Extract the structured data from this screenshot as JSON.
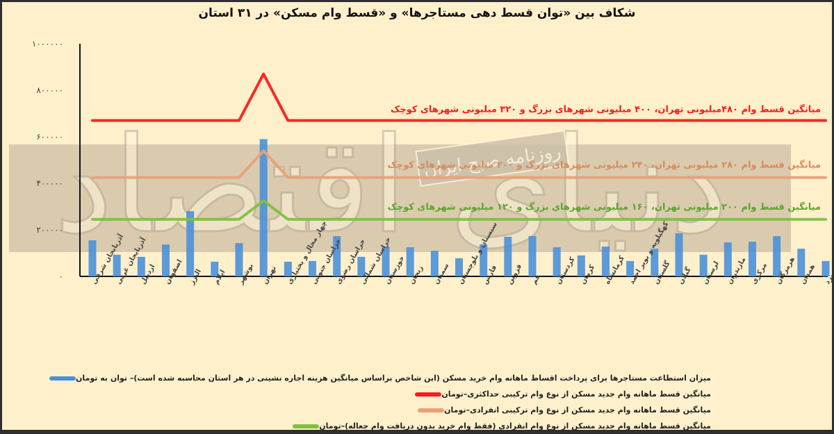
{
  "title": "شکاف بین «توان قسط دهی مستاجرها» و «قسط وام مسکن» در ۳۱ استان",
  "watermarks": {
    "large": "دنیای اقتصاد",
    "stamp": "روزنامه صبح ایران"
  },
  "colors": {
    "background": "#fff0cc",
    "bar": "#4a90d9",
    "red": "#ff1a1a",
    "orange": "#e8a07a",
    "green": "#7cc142",
    "band": "#cdbfa4"
  },
  "annotations": {
    "red": "میانگین قسط وام ۴۸۰میلیونی تهران، ۴۰۰ میلیونی شهرهای بزرگ و ۳۲۰ میلیونی شهرهای کوچک",
    "orange": "میانگین قسط وام ۲۸۰ میلیونی تهران، ۲۴۰ میلیونی شهرهای بزرگ و ۲۰۰ میلیونی شهرهای کوچک",
    "green": "میانگین قسط وام ۲۰۰ میلیونی تهران، ۱۶۰ میلیونی شهرهای بزرگ و ۱۲۰ میلیونی شهرهای کوچک"
  },
  "y_ticks": [
    "۱۰۰۰۰۰۰",
    "۸۰۰۰۰۰",
    "۶۰۰۰۰۰",
    "۴۰۰۰۰۰",
    "۲۰۰۰۰۰",
    "۰"
  ],
  "legend": [
    {
      "key": "bar",
      "label": "میزان استطاعت مستاجرها برای پرداخت اقساط ماهانه وام خرید مسکن (این شاخص براساس میانگین هزینه اجاره نشینی در هر استان محاسبه شده است)– توان به تومان"
    },
    {
      "key": "red",
      "label": "میانگین قسط ماهانه وام جدید مسکن از نوع وام ترکیبی حداکثری–تومان"
    },
    {
      "key": "orange",
      "label": "میانگین قسط ماهانه وام جدید مسکن از نوع وام ترکیبی انفرادی–تومان"
    },
    {
      "key": "green",
      "label": "میانگین قسط ماهانه وام جدید مسکن از نوع وام انفرادی (فقط وام خرید بدون دریافت وام جعاله)–تومان"
    }
  ],
  "chart_data": {
    "type": "bar",
    "title": "شکاف بین «توان قسط دهی مستاجرها» و «قسط وام مسکن» در ۳۱ استان",
    "xlabel": "",
    "ylabel": "تومان",
    "ylim": [
      0,
      1000000
    ],
    "grid": false,
    "legend_position": "bottom",
    "categories": [
      "آذربایجان شرقی",
      "آذربایجان غربی",
      "اردبیل",
      "اصفهان",
      "البرز",
      "ایلام",
      "بوشهر",
      "تهران",
      "چهار محال و بختیاری",
      "خراسان جنوبی",
      "خراسان رضوی",
      "خراسان شمالی",
      "خوزستان",
      "زنجان",
      "سمنان",
      "سیستان و بلوچستان",
      "فارس",
      "قزوین",
      "قم",
      "کردستان",
      "کرمان",
      "کرمانشاه",
      "کهگیلویه و بویر احمد",
      "گلستان",
      "گیلان",
      "لرستان",
      "مازندران",
      "مرکزی",
      "هرمزگان",
      "همدان",
      "یزد"
    ],
    "series": [
      {
        "name": "توان قسط دهی مستاجرها",
        "type": "bar",
        "values": [
          155000,
          93000,
          84000,
          137000,
          280000,
          63000,
          143000,
          590000,
          63000,
          66000,
          173000,
          84000,
          128000,
          125000,
          110000,
          78000,
          137000,
          170000,
          173000,
          125000,
          90000,
          128000,
          66000,
          119000,
          185000,
          93000,
          146000,
          149000,
          173000,
          119000,
          66000
        ]
      },
      {
        "name": "قسط وام ترکیبی حداکثری",
        "type": "line",
        "values": [
          670000,
          670000,
          670000,
          670000,
          670000,
          670000,
          670000,
          870000,
          670000,
          670000,
          670000,
          670000,
          670000,
          670000,
          670000,
          670000,
          670000,
          670000,
          670000,
          670000,
          670000,
          670000,
          670000,
          670000,
          670000,
          670000,
          670000,
          670000,
          670000,
          670000,
          670000
        ]
      },
      {
        "name": "قسط وام ترکیبی انفرادی",
        "type": "line",
        "values": [
          425000,
          425000,
          425000,
          425000,
          425000,
          425000,
          425000,
          540000,
          425000,
          425000,
          425000,
          425000,
          425000,
          425000,
          425000,
          425000,
          425000,
          425000,
          425000,
          425000,
          425000,
          425000,
          425000,
          425000,
          425000,
          425000,
          425000,
          425000,
          425000,
          425000,
          425000
        ]
      },
      {
        "name": "قسط وام انفرادی",
        "type": "line",
        "values": [
          245000,
          245000,
          245000,
          245000,
          245000,
          245000,
          245000,
          325000,
          245000,
          245000,
          245000,
          245000,
          245000,
          245000,
          245000,
          245000,
          245000,
          245000,
          245000,
          245000,
          245000,
          245000,
          245000,
          245000,
          245000,
          245000,
          245000,
          245000,
          245000,
          245000,
          245000
        ]
      }
    ]
  }
}
